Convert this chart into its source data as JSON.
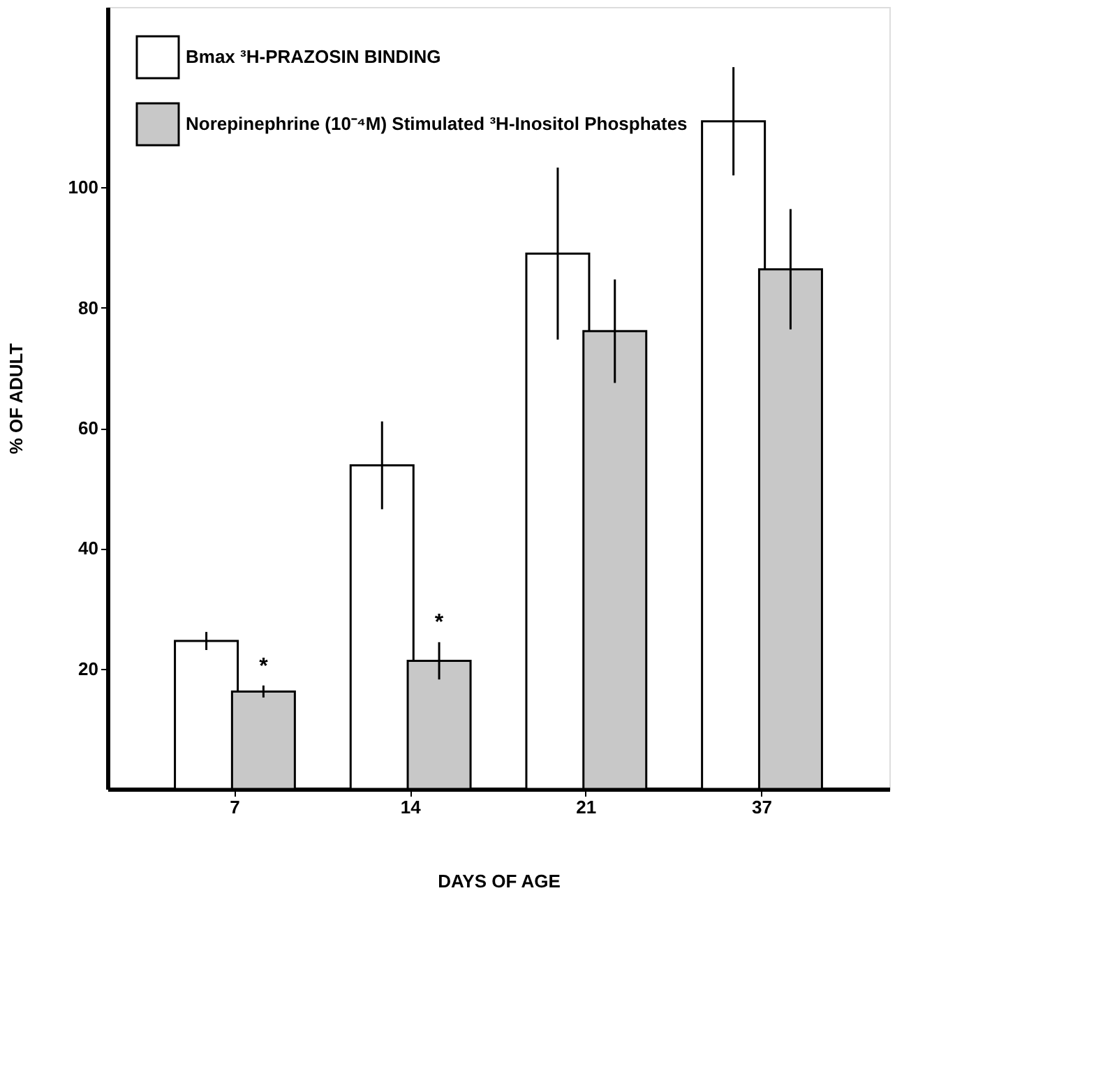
{
  "chart_data": {
    "type": "bar",
    "xlabel": "DAYS OF AGE",
    "ylabel": "% OF ADULT",
    "categories": [
      "7",
      "14",
      "21",
      "37"
    ],
    "series": [
      {
        "name": "Bmax ³H-PRAZOSIN BINDING",
        "color": "#ffffff",
        "values": [
          24.6,
          53.8,
          89.0,
          111.0
        ],
        "errors": [
          1.5,
          7.3,
          14.3,
          9.0
        ]
      },
      {
        "name": "Norepinephrine (10⁻⁴M) Stimulated ³H-Inositol Phosphates",
        "color": "#c8c8c8",
        "values": [
          16.2,
          21.3,
          76.1,
          86.4
        ],
        "errors": [
          1.0,
          3.1,
          8.6,
          10.0
        ]
      }
    ],
    "annotations": [
      {
        "text": "*",
        "x": "7",
        "y": 17.2
      },
      {
        "text": "*",
        "x": "14",
        "y": 24.5
      }
    ],
    "ylim": [
      0,
      130
    ],
    "yticks": [
      20,
      40,
      60,
      80,
      100
    ],
    "grid": false,
    "legend": "top left"
  }
}
